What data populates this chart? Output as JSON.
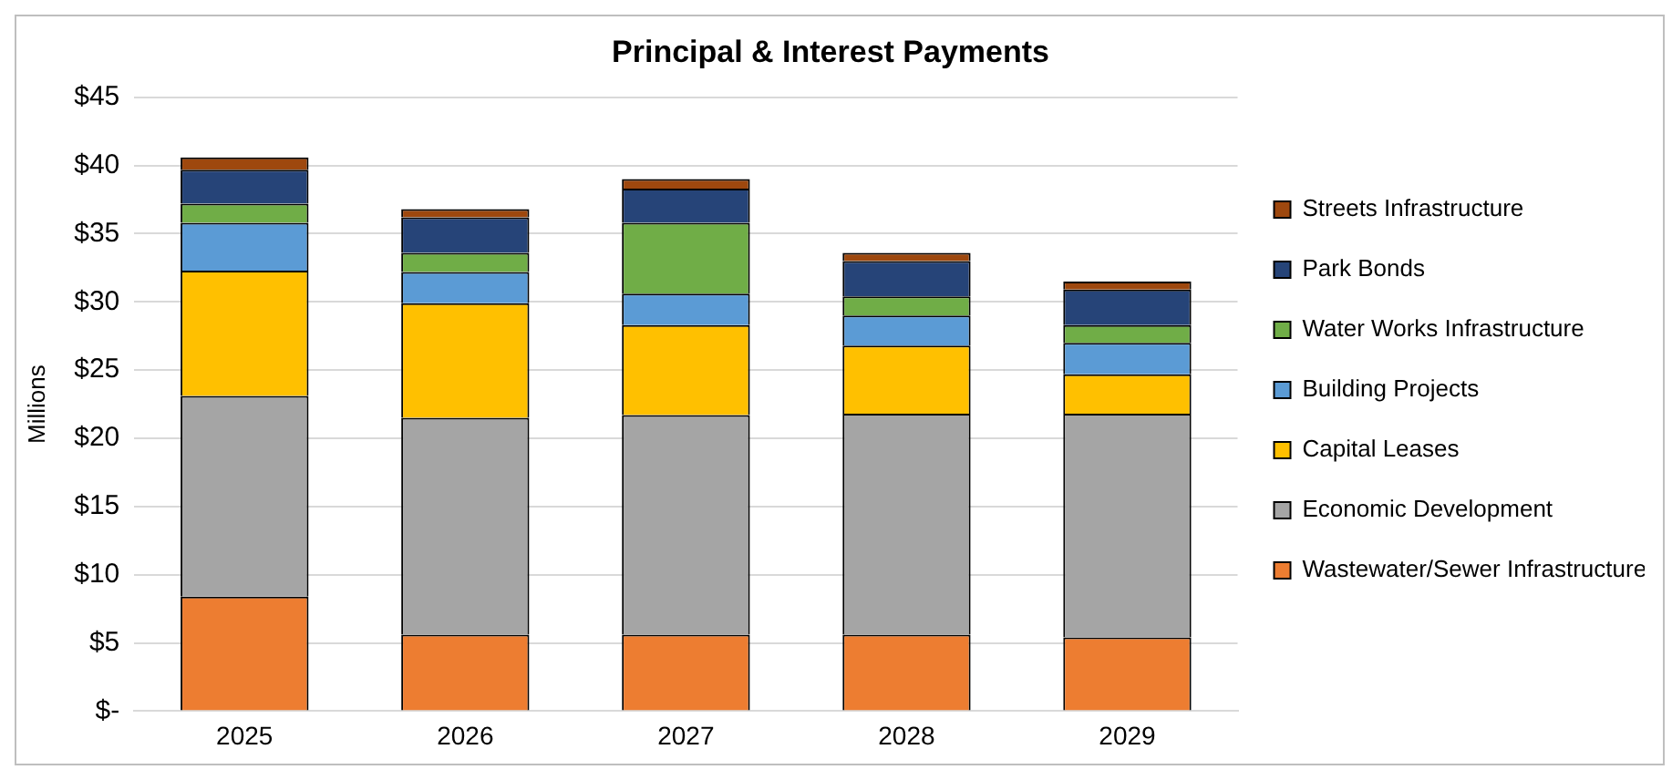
{
  "chart_data": {
    "type": "bar",
    "title": "Principal & Interest Payments",
    "ylabel": "Millions",
    "stacked": true,
    "categories": [
      "2025",
      "2026",
      "2027",
      "2028",
      "2029"
    ],
    "series": [
      {
        "name": "Wastewater/Sewer Infrastructure",
        "color": "#ed7d31",
        "values": [
          8.4,
          5.6,
          5.6,
          5.6,
          5.4
        ]
      },
      {
        "name": "Economic Development",
        "color": "#a5a5a5",
        "values": [
          14.7,
          15.9,
          16.1,
          16.2,
          16.4
        ]
      },
      {
        "name": "Capital Leases",
        "color": "#ffc000",
        "values": [
          9.2,
          8.4,
          6.6,
          5.0,
          2.9
        ]
      },
      {
        "name": "Building Projects",
        "color": "#5b9bd5",
        "values": [
          3.5,
          2.3,
          2.3,
          2.2,
          2.3
        ]
      },
      {
        "name": "Water Works Infrastructure",
        "color": "#70ad47",
        "values": [
          1.4,
          1.4,
          5.2,
          1.4,
          1.3
        ]
      },
      {
        "name": "Park Bonds",
        "color": "#264478",
        "values": [
          2.5,
          2.6,
          2.5,
          2.6,
          2.6
        ]
      },
      {
        "name": "Streets Infrastructure",
        "color": "#9e480e",
        "values": [
          0.9,
          0.6,
          0.7,
          0.6,
          0.6
        ]
      }
    ],
    "ylim": [
      0,
      45
    ],
    "yticks": [
      {
        "value": 0,
        "label": "$-"
      },
      {
        "value": 5,
        "label": "$5"
      },
      {
        "value": 10,
        "label": "$10"
      },
      {
        "value": 15,
        "label": "$15"
      },
      {
        "value": 20,
        "label": "$20"
      },
      {
        "value": 25,
        "label": "$25"
      },
      {
        "value": 30,
        "label": "$30"
      },
      {
        "value": 35,
        "label": "$35"
      },
      {
        "value": 40,
        "label": "$40"
      },
      {
        "value": 45,
        "label": "$45"
      }
    ],
    "grid": "y",
    "legend": "right"
  }
}
